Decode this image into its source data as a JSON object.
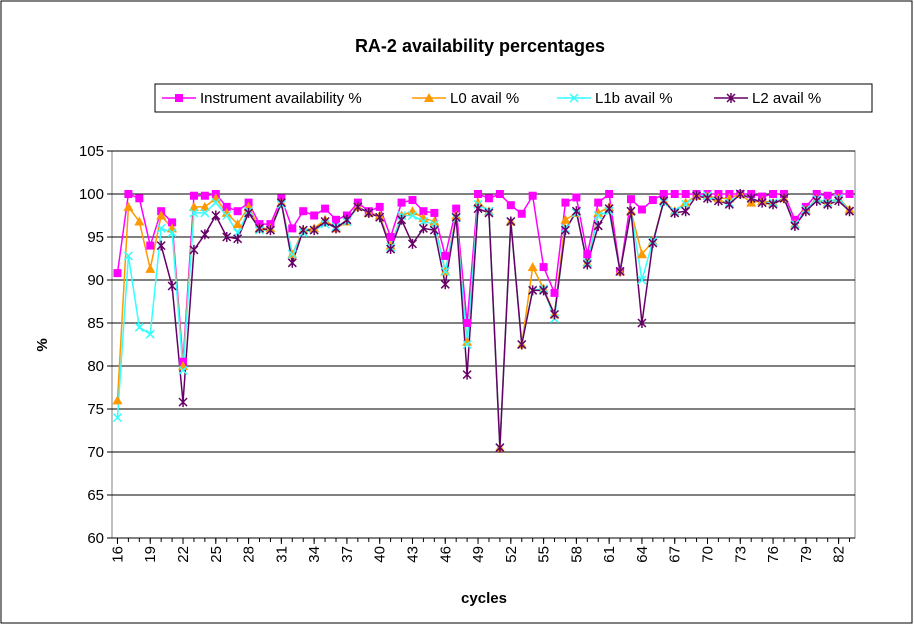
{
  "chart_data": {
    "type": "line",
    "title": "RA-2 availability percentages",
    "x_label": "cycles",
    "y_label": "%",
    "x": [
      16,
      17,
      18,
      19,
      20,
      21,
      22,
      23,
      24,
      25,
      26,
      27,
      28,
      29,
      30,
      31,
      32,
      33,
      34,
      35,
      36,
      37,
      38,
      39,
      40,
      41,
      42,
      43,
      44,
      45,
      46,
      47,
      48,
      49,
      50,
      51,
      52,
      53,
      54,
      55,
      56,
      57,
      58,
      59,
      60,
      61,
      62,
      63,
      64,
      65,
      66,
      67,
      68,
      69,
      70,
      71,
      72,
      73,
      74,
      75,
      76,
      77,
      78,
      79,
      80,
      81,
      82,
      83
    ],
    "xlim": [
      15.5,
      83.5
    ],
    "xticks": [
      16,
      19,
      22,
      25,
      28,
      31,
      34,
      37,
      40,
      43,
      46,
      49,
      52,
      55,
      58,
      61,
      64,
      67,
      70,
      73,
      76,
      79,
      82
    ],
    "ylim": [
      60,
      105
    ],
    "yticks": [
      60,
      65,
      70,
      75,
      80,
      85,
      90,
      95,
      100,
      105
    ],
    "grid": true,
    "series": [
      {
        "name": "Instrument availability %",
        "color": "#ff00ff",
        "marker": "square",
        "values": [
          90.8,
          100,
          99.5,
          94,
          98,
          96.7,
          80.5,
          99.8,
          99.8,
          100,
          98.5,
          98,
          99,
          96.5,
          96.5,
          99.5,
          96,
          98,
          97.5,
          98.3,
          97,
          97.5,
          99,
          98,
          98.5,
          95,
          99,
          99.3,
          98,
          97.8,
          92.8,
          98.3,
          85,
          100,
          99.5,
          100,
          98.7,
          97.7,
          99.8,
          91.5,
          88.5,
          99,
          99.6,
          93,
          99,
          100,
          91,
          99.4,
          98.2,
          99.3,
          100,
          100,
          100,
          100,
          100,
          100,
          100,
          100,
          100,
          99.7,
          100,
          100,
          97,
          98.5,
          100,
          99.8,
          100,
          100
        ]
      },
      {
        "name": "L0 avail %",
        "color": "#ff9900",
        "marker": "triangle",
        "values": [
          76,
          98.5,
          96.8,
          91.3,
          97.5,
          96,
          80,
          98.5,
          98.5,
          99.5,
          97.8,
          96.5,
          98.5,
          96,
          96,
          99,
          93,
          95.8,
          96,
          97,
          96,
          96.8,
          98.5,
          97.8,
          97.5,
          94,
          97.5,
          98,
          97.2,
          96.8,
          91,
          97.5,
          82.8,
          99,
          98,
          70.5,
          96.8,
          82.5,
          91.5,
          89,
          86,
          97,
          97.8,
          92,
          97.8,
          98.5,
          91,
          98,
          93,
          94.5,
          99.2,
          98,
          99,
          99.8,
          99.8,
          99.5,
          99.5,
          100,
          99,
          99.2,
          99,
          99.5,
          96.5,
          98.2,
          99.4,
          99,
          99.5,
          98.2
        ]
      },
      {
        "name": "L1b avail %",
        "color": "#33ffff",
        "marker": "x",
        "values": [
          74,
          92.8,
          84.5,
          83.7,
          96,
          95.5,
          79.5,
          97.8,
          97.8,
          99,
          97.5,
          95.5,
          98,
          95.8,
          95.8,
          98.8,
          93,
          95.5,
          95.8,
          96.5,
          96.2,
          96.8,
          98.5,
          97.8,
          97.3,
          93.8,
          97.5,
          97.5,
          96.8,
          96.5,
          91,
          97.2,
          82.5,
          98.8,
          98,
          70.5,
          96.8,
          82.5,
          88.8,
          89,
          85.5,
          96,
          97.8,
          92,
          97.5,
          98,
          91,
          98,
          90,
          94.5,
          99,
          98,
          98.8,
          99.8,
          99.8,
          99.2,
          99,
          100,
          99.5,
          99,
          99,
          99.5,
          96.5,
          98.2,
          99.4,
          99,
          99.5,
          98
        ]
      },
      {
        "name": "L2 avail %",
        "color": "#660066",
        "marker": "star",
        "values": [
          null,
          null,
          null,
          null,
          94,
          89.3,
          75.8,
          93.5,
          95.3,
          97.5,
          95,
          94.8,
          97.8,
          96,
          95.8,
          99,
          92,
          95.8,
          95.8,
          96.8,
          96,
          97,
          98.5,
          97.8,
          97.3,
          93.6,
          97,
          94.2,
          96,
          95.8,
          89.5,
          97.3,
          79,
          98.3,
          97.8,
          70.5,
          96.8,
          82.5,
          88.8,
          88.8,
          86,
          95.8,
          98,
          91.8,
          96.3,
          98.3,
          91,
          98,
          85,
          94.3,
          99.2,
          97.8,
          98,
          99.8,
          99.5,
          99.2,
          98.8,
          100,
          99.5,
          99,
          98.8,
          99.5,
          96.3,
          98,
          99.2,
          98.8,
          99.2,
          98
        ]
      }
    ]
  }
}
